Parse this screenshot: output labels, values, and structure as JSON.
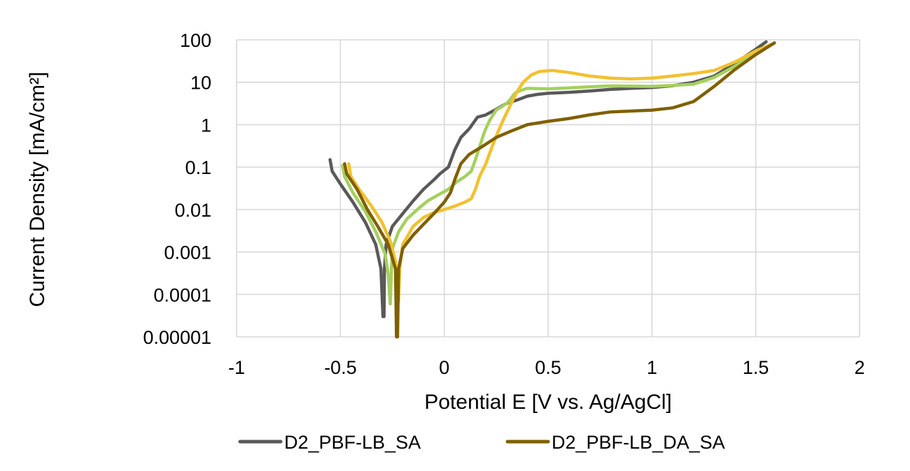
{
  "chart_data": {
    "type": "line",
    "xlabel": "Potential E [V vs. Ag/AgCl]",
    "ylabel": "Current Density [mA/cm²]",
    "x_scale": "linear",
    "y_scale": "log",
    "xlim": [
      -1,
      2
    ],
    "ylim": [
      1e-05,
      100
    ],
    "x_ticks": [
      -1,
      -0.5,
      0,
      0.5,
      1,
      1.5,
      2
    ],
    "x_tick_labels": [
      "-1",
      "-0.5",
      "0",
      "0.5",
      "1",
      "1.5",
      "2"
    ],
    "y_ticks": [
      1e-05,
      0.0001,
      0.001,
      0.01,
      0.1,
      1,
      10,
      100
    ],
    "y_tick_labels": [
      "0.00001",
      "0.0001",
      "0.001",
      "0.01",
      "0.1",
      "1",
      "10",
      "100"
    ],
    "grid": true,
    "legend_position": "bottom",
    "series": [
      {
        "name": "D2_PBF-LB_SA",
        "color": "#595959",
        "in_legend": true,
        "points": [
          [
            -0.55,
            0.15
          ],
          [
            -0.54,
            0.08
          ],
          [
            -0.5,
            0.04
          ],
          [
            -0.44,
            0.015
          ],
          [
            -0.38,
            0.005
          ],
          [
            -0.33,
            0.0015
          ],
          [
            -0.305,
            0.0004
          ],
          [
            -0.295,
            3e-05
          ],
          [
            -0.29,
            3e-05
          ],
          [
            -0.288,
            0.0004
          ],
          [
            -0.28,
            0.0015
          ],
          [
            -0.25,
            0.004
          ],
          [
            -0.2,
            0.008
          ],
          [
            -0.15,
            0.016
          ],
          [
            -0.1,
            0.03
          ],
          [
            -0.05,
            0.05
          ],
          [
            -0.02,
            0.07
          ],
          [
            0.02,
            0.1
          ],
          [
            0.05,
            0.25
          ],
          [
            0.08,
            0.5
          ],
          [
            0.12,
            0.8
          ],
          [
            0.16,
            1.5
          ],
          [
            0.2,
            1.7
          ],
          [
            0.25,
            2.3
          ],
          [
            0.3,
            3.2
          ],
          [
            0.35,
            3.8
          ],
          [
            0.4,
            4.7
          ],
          [
            0.45,
            5.2
          ],
          [
            0.5,
            5.5
          ],
          [
            0.6,
            5.8
          ],
          [
            0.7,
            6.2
          ],
          [
            0.8,
            6.8
          ],
          [
            0.9,
            7.2
          ],
          [
            1.0,
            7.5
          ],
          [
            1.1,
            8.3
          ],
          [
            1.2,
            10
          ],
          [
            1.3,
            14
          ],
          [
            1.4,
            28
          ],
          [
            1.5,
            60
          ],
          [
            1.55,
            90
          ]
        ]
      },
      {
        "name": "",
        "color": "#a5d05e",
        "in_legend": false,
        "points": [
          [
            -0.49,
            0.11
          ],
          [
            -0.48,
            0.06
          ],
          [
            -0.44,
            0.025
          ],
          [
            -0.38,
            0.009
          ],
          [
            -0.33,
            0.003
          ],
          [
            -0.285,
            0.0009
          ],
          [
            -0.27,
            0.0003
          ],
          [
            -0.26,
            6e-05
          ],
          [
            -0.255,
            0.0003
          ],
          [
            -0.25,
            0.0012
          ],
          [
            -0.22,
            0.003
          ],
          [
            -0.18,
            0.006
          ],
          [
            -0.13,
            0.01
          ],
          [
            -0.08,
            0.016
          ],
          [
            -0.03,
            0.022
          ],
          [
            0.02,
            0.03
          ],
          [
            0.06,
            0.045
          ],
          [
            0.1,
            0.06
          ],
          [
            0.13,
            0.08
          ],
          [
            0.15,
            0.15
          ],
          [
            0.17,
            0.3
          ],
          [
            0.19,
            0.6
          ],
          [
            0.2,
            0.8
          ],
          [
            0.22,
            1.3
          ],
          [
            0.25,
            2.2
          ],
          [
            0.28,
            2.7
          ],
          [
            0.31,
            3.5
          ],
          [
            0.34,
            5.5
          ],
          [
            0.36,
            6.2
          ],
          [
            0.4,
            7.2
          ],
          [
            0.5,
            7.0
          ],
          [
            0.6,
            7.4
          ],
          [
            0.7,
            7.8
          ],
          [
            0.8,
            8.2
          ],
          [
            0.9,
            8.1
          ],
          [
            1.0,
            8.0
          ],
          [
            1.1,
            8.4
          ],
          [
            1.2,
            9.0
          ],
          [
            1.3,
            13
          ],
          [
            1.4,
            24
          ],
          [
            1.5,
            50
          ],
          [
            1.57,
            75
          ]
        ]
      },
      {
        "name": "",
        "color": "#f2c12e",
        "in_legend": false,
        "points": [
          [
            -0.46,
            0.12
          ],
          [
            -0.45,
            0.06
          ],
          [
            -0.41,
            0.03
          ],
          [
            -0.35,
            0.012
          ],
          [
            -0.3,
            0.005
          ],
          [
            -0.26,
            0.0018
          ],
          [
            -0.235,
            0.0006
          ],
          [
            -0.22,
            7e-05
          ],
          [
            -0.215,
            0.0004
          ],
          [
            -0.2,
            0.0015
          ],
          [
            -0.15,
            0.004
          ],
          [
            -0.1,
            0.0065
          ],
          [
            -0.05,
            0.0085
          ],
          [
            0.0,
            0.01
          ],
          [
            0.05,
            0.012
          ],
          [
            0.1,
            0.015
          ],
          [
            0.13,
            0.018
          ],
          [
            0.15,
            0.03
          ],
          [
            0.17,
            0.06
          ],
          [
            0.2,
            0.12
          ],
          [
            0.23,
            0.3
          ],
          [
            0.26,
            0.7
          ],
          [
            0.29,
            1.5
          ],
          [
            0.32,
            3.0
          ],
          [
            0.35,
            6
          ],
          [
            0.38,
            10
          ],
          [
            0.42,
            15
          ],
          [
            0.46,
            18
          ],
          [
            0.52,
            19
          ],
          [
            0.6,
            17
          ],
          [
            0.7,
            14
          ],
          [
            0.8,
            12.5
          ],
          [
            0.9,
            12
          ],
          [
            1.0,
            12.5
          ],
          [
            1.1,
            14
          ],
          [
            1.2,
            16
          ],
          [
            1.3,
            19
          ],
          [
            1.4,
            30
          ],
          [
            1.5,
            55
          ],
          [
            1.58,
            80
          ]
        ]
      },
      {
        "name": "D2_PBF-LB_DA_SA",
        "color": "#7f6000",
        "in_legend": true,
        "points": [
          [
            -0.48,
            0.12
          ],
          [
            -0.47,
            0.07
          ],
          [
            -0.42,
            0.03
          ],
          [
            -0.37,
            0.01
          ],
          [
            -0.32,
            0.004
          ],
          [
            -0.27,
            0.0015
          ],
          [
            -0.235,
            0.0004
          ],
          [
            -0.23,
            1e-05
          ],
          [
            -0.225,
            1e-05
          ],
          [
            -0.22,
            0.0004
          ],
          [
            -0.2,
            0.0012
          ],
          [
            -0.15,
            0.0025
          ],
          [
            -0.1,
            0.0045
          ],
          [
            -0.05,
            0.008
          ],
          [
            0.0,
            0.015
          ],
          [
            0.03,
            0.025
          ],
          [
            0.05,
            0.05
          ],
          [
            0.08,
            0.12
          ],
          [
            0.12,
            0.2
          ],
          [
            0.18,
            0.3
          ],
          [
            0.25,
            0.5
          ],
          [
            0.32,
            0.7
          ],
          [
            0.4,
            1.0
          ],
          [
            0.5,
            1.2
          ],
          [
            0.6,
            1.4
          ],
          [
            0.7,
            1.7
          ],
          [
            0.8,
            2.0
          ],
          [
            0.9,
            2.1
          ],
          [
            1.0,
            2.2
          ],
          [
            1.1,
            2.5
          ],
          [
            1.2,
            3.5
          ],
          [
            1.3,
            8
          ],
          [
            1.4,
            20
          ],
          [
            1.5,
            45
          ],
          [
            1.59,
            85
          ]
        ]
      }
    ]
  }
}
